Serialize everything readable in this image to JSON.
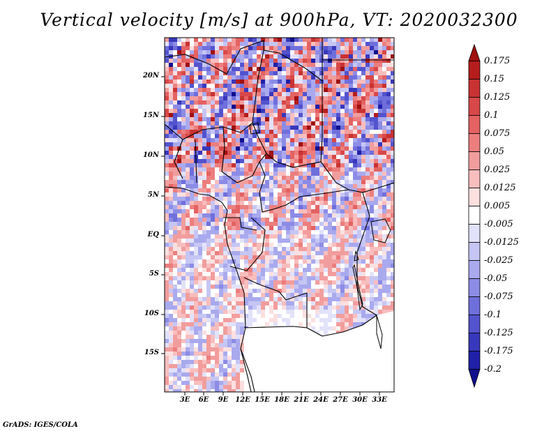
{
  "title": "Vertical velocity [m/s] at 900hPa, VT: 2020032300",
  "footer": "GrADS: IGES/COLA",
  "map": {
    "lat_labels": [
      "20N",
      "15N",
      "10N",
      "5N",
      "EQ",
      "5S",
      "10S",
      "15S"
    ],
    "lon_labels": [
      "3E",
      "6E",
      "9E",
      "12E",
      "15E",
      "18E",
      "21E",
      "24E",
      "27E",
      "30E",
      "33E"
    ]
  },
  "colorbar": {
    "labels": [
      "0.175",
      "0.15",
      "0.125",
      "0.1",
      "0.075",
      "0.05",
      "0.025",
      "0.0125",
      "0.005",
      "-0.005",
      "-0.0125",
      "-0.025",
      "-0.05",
      "-0.075",
      "-0.1",
      "-0.125",
      "-0.175",
      "-0.2"
    ],
    "colors": [
      "#a01010",
      "#b51d1d",
      "#c83232",
      "#d84848",
      "#e46262",
      "#ec7e7e",
      "#f29d9d",
      "#f8bebe",
      "#fce0e0",
      "#ffffff",
      "#e2e2fa",
      "#c6c6f4",
      "#a9a9ee",
      "#8c8ce6",
      "#6f6fdc",
      "#5353ce",
      "#3838bc",
      "#2020a8",
      "#10108e"
    ]
  }
}
